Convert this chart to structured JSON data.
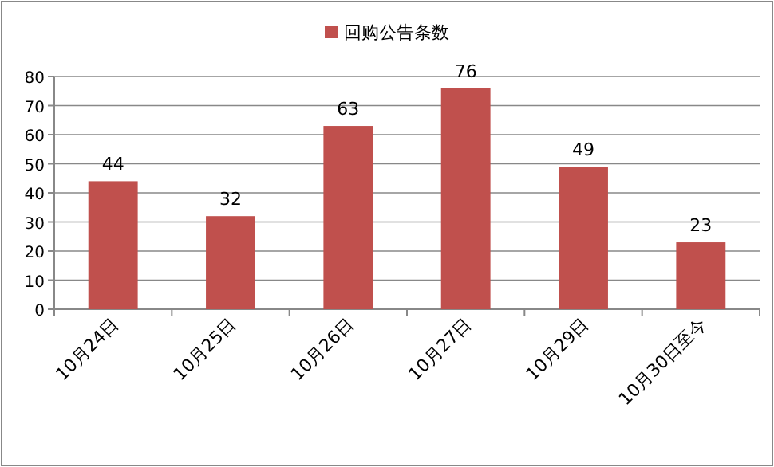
{
  "chart_data": {
    "type": "bar",
    "categories": [
      "10月24日",
      "10月25日",
      "10月26日",
      "10月27日",
      "10月29日",
      "10月30日至今"
    ],
    "series": [
      {
        "name": "回购公告条数",
        "color": "#c0504d",
        "values": [
          44,
          32,
          63,
          76,
          49,
          23
        ]
      }
    ],
    "ylim": [
      0,
      80
    ],
    "yticks": [
      0,
      10,
      20,
      30,
      40,
      50,
      60,
      70,
      80
    ],
    "grid": "y",
    "legend": "top",
    "data_labels": true
  }
}
